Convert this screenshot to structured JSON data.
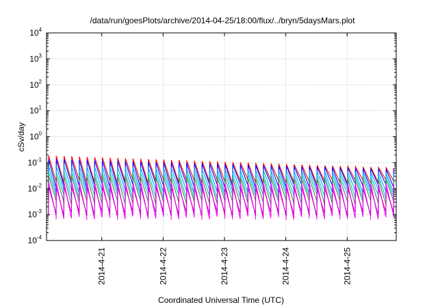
{
  "chart_data": {
    "type": "line",
    "title": "/data/run/goesPlots/archive/2014-04-25/18:00/flux/../bryn/5daysMars.plot",
    "xlabel": "Coordinated Universal Time (UTC)",
    "ylabel": "cSv/day",
    "yscale": "log",
    "ylim": [
      0.0001,
      10000
    ],
    "xlim_days": [
      20.1,
      25.8
    ],
    "y_ticks": [
      {
        "base": "10",
        "exp": "-4",
        "value": 0.0001
      },
      {
        "base": "10",
        "exp": "-3",
        "value": 0.001
      },
      {
        "base": "10",
        "exp": "-2",
        "value": 0.01
      },
      {
        "base": "10",
        "exp": "-1",
        "value": 0.1
      },
      {
        "base": "10",
        "exp": "0",
        "value": 1
      },
      {
        "base": "10",
        "exp": "1",
        "value": 10
      },
      {
        "base": "10",
        "exp": "2",
        "value": 100
      },
      {
        "base": "10",
        "exp": "3",
        "value": 1000
      },
      {
        "base": "10",
        "exp": "4",
        "value": 10000
      }
    ],
    "x_ticks": [
      {
        "label": "2014-4-21",
        "day": 21
      },
      {
        "label": "2014-4-22",
        "day": 22
      },
      {
        "label": "2014-4-23",
        "day": 23
      },
      {
        "label": "2014-4-24",
        "day": 24
      },
      {
        "label": "2014-4-25",
        "day": 25
      }
    ],
    "grid": true,
    "legend": "none",
    "cycles_per_day": 8,
    "series": [
      {
        "color": "#ff0000",
        "peak_start": 0.19,
        "peak_end": 0.062,
        "trough": 0.019
      },
      {
        "color": "#0000ff",
        "peak_start": 0.14,
        "peak_end": 0.055,
        "trough": 0.013
      },
      {
        "color": "#00a0ff",
        "peak_start": 0.075,
        "peak_end": 0.04,
        "trough": 0.008
      },
      {
        "color": "#00c8c8",
        "peak_start": 0.045,
        "peak_end": 0.03,
        "trough": 0.005
      },
      {
        "color": "#4f7f4f",
        "peak_start": 0.03,
        "peak_end": 0.022,
        "trough": 0.003
      },
      {
        "color": "#ff00ff",
        "peak_start": 0.018,
        "peak_end": 0.015,
        "trough": 0.0008
      },
      {
        "color": "#cc00cc",
        "peak_start": 0.012,
        "peak_end": 0.01,
        "trough": 0.0011
      }
    ]
  }
}
